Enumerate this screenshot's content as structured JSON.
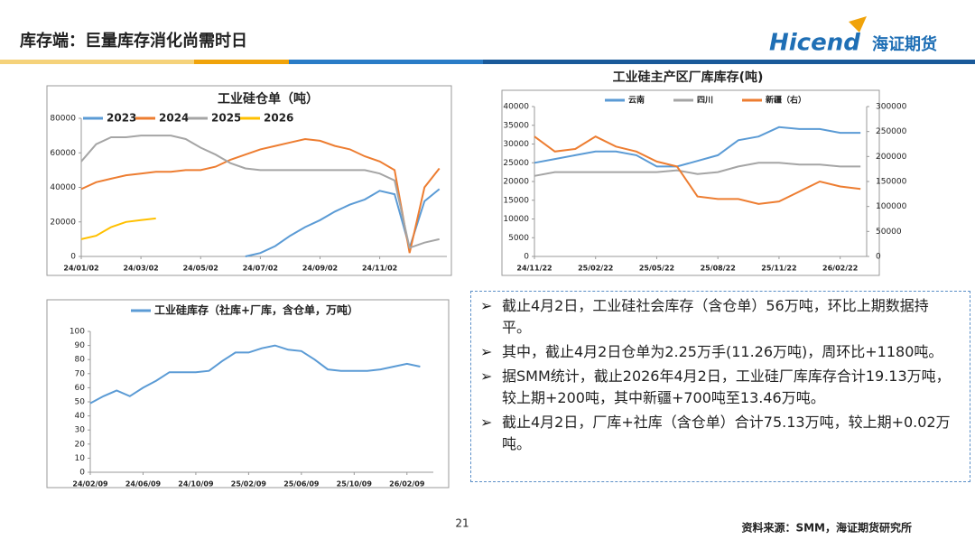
{
  "header": {
    "title": "库存端：巨量库存消化尚需时日"
  },
  "logo": {
    "brand": "Hicend",
    "name": "海证期货"
  },
  "chart_data": [
    {
      "type": "line",
      "title": "工业硅仓单（吨）",
      "categories": [
        "24/01/02",
        null,
        null,
        null,
        "24/03/02",
        null,
        null,
        null,
        "24/05/02",
        null,
        null,
        null,
        "24/07/02",
        null,
        null,
        null,
        "24/09/02",
        null,
        null,
        null,
        "24/11/02",
        null,
        null,
        null,
        null
      ],
      "ylim": [
        0,
        80000
      ],
      "yticks": [
        0,
        20000,
        40000,
        60000,
        80000
      ],
      "legend": "top-left",
      "series": [
        {
          "name": "2023",
          "color": "#5b9bd5",
          "values": [
            null,
            null,
            null,
            null,
            null,
            null,
            null,
            null,
            null,
            null,
            null,
            0,
            2000,
            6000,
            12000,
            17000,
            21000,
            26000,
            30000,
            33000,
            38000,
            36000,
            5000,
            32000,
            39000
          ]
        },
        {
          "name": "2024",
          "color": "#ed7d31",
          "values": [
            39000,
            43000,
            45000,
            47000,
            48000,
            49000,
            49000,
            50000,
            50000,
            52000,
            56000,
            59000,
            62000,
            64000,
            66000,
            68000,
            67000,
            64000,
            62000,
            58000,
            55000,
            50000,
            2000,
            40000,
            51000
          ]
        },
        {
          "name": "2025",
          "color": "#a5a5a5",
          "values": [
            55000,
            65000,
            69000,
            69000,
            70000,
            70000,
            70000,
            68000,
            63000,
            59000,
            54000,
            51000,
            50000,
            50000,
            50000,
            50000,
            50000,
            50000,
            50000,
            50000,
            48000,
            44000,
            5000,
            8000,
            10000
          ]
        },
        {
          "name": "2026",
          "color": "#ffc000",
          "values": [
            10000,
            12000,
            17000,
            20000,
            21000,
            22000,
            null,
            null,
            null,
            null,
            null,
            null,
            null,
            null,
            null,
            null,
            null,
            null,
            null,
            null,
            null,
            null,
            null,
            null,
            null
          ]
        }
      ]
    },
    {
      "type": "line",
      "title": "工业硅主产区厂库库存(吨)",
      "categories": [
        "24/11/22",
        null,
        null,
        "25/02/22",
        null,
        null,
        "25/05/22",
        null,
        null,
        "25/08/22",
        null,
        null,
        "25/11/22",
        null,
        null,
        "26/02/22",
        null
      ],
      "ylim": [
        0,
        40000
      ],
      "yticks": [
        0,
        5000,
        10000,
        15000,
        20000,
        25000,
        30000,
        35000,
        40000
      ],
      "y2lim": [
        0,
        300000
      ],
      "y2ticks": [
        0,
        50000,
        100000,
        150000,
        200000,
        250000,
        300000
      ],
      "legend": "top",
      "series": [
        {
          "name": "云南",
          "color": "#5b9bd5",
          "values": [
            25000,
            26000,
            27000,
            28000,
            28000,
            27000,
            24000,
            24000,
            25500,
            27000,
            31000,
            32000,
            34500,
            34000,
            34000,
            33000,
            33000
          ]
        },
        {
          "name": "四川",
          "color": "#a5a5a5",
          "values": [
            21500,
            22500,
            22500,
            22500,
            22500,
            22500,
            22500,
            23000,
            22000,
            22500,
            24000,
            25000,
            25000,
            24500,
            24500,
            24000,
            24000
          ]
        },
        {
          "name": "新疆（右）",
          "color": "#ed7d31",
          "axis": "y2",
          "values": [
            240000,
            210000,
            215000,
            240000,
            220000,
            210000,
            190000,
            180000,
            120000,
            115000,
            115000,
            105000,
            110000,
            130000,
            150000,
            140000,
            135000
          ]
        }
      ]
    },
    {
      "type": "line",
      "categories": [
        "24/02/09",
        null,
        null,
        null,
        "24/06/09",
        null,
        null,
        null,
        "24/10/09",
        null,
        null,
        null,
        "25/02/09",
        null,
        null,
        null,
        "25/06/09",
        null,
        null,
        null,
        "25/10/09",
        null,
        null,
        null,
        "26/02/09",
        null
      ],
      "ylim": [
        0,
        100
      ],
      "yticks": [
        0,
        10,
        20,
        30,
        40,
        50,
        60,
        70,
        80,
        90,
        100
      ],
      "legend": "top",
      "series": [
        {
          "name": "工业硅库存（社库+厂库，含仓单，万吨）",
          "color": "#5b9bd5",
          "values": [
            49,
            54,
            58,
            54,
            60,
            65,
            71,
            71,
            71,
            72,
            79,
            85,
            85,
            88,
            90,
            87,
            86,
            80,
            73,
            72,
            72,
            72,
            73,
            75,
            77,
            75
          ]
        }
      ]
    }
  ],
  "bullets": [
    "截止4月2日，工业硅社会库存（含仓单）56万吨，环比上期数据持平。",
    "其中，截止4月2日仓单为2.25万手(11.26万吨)，周环比+1180吨。",
    "据SMM统计，截止2026年4月2日，工业硅厂库库存合计19.13万吨，较上期+200吨，其中新疆+700吨至13.46万吨。",
    "截止4月2日，厂库+社库（含仓单）合计75.13万吨，较上期+0.02万吨。"
  ],
  "footer": {
    "page": "21",
    "source": "资料来源：SMM，海证期货研究所"
  }
}
